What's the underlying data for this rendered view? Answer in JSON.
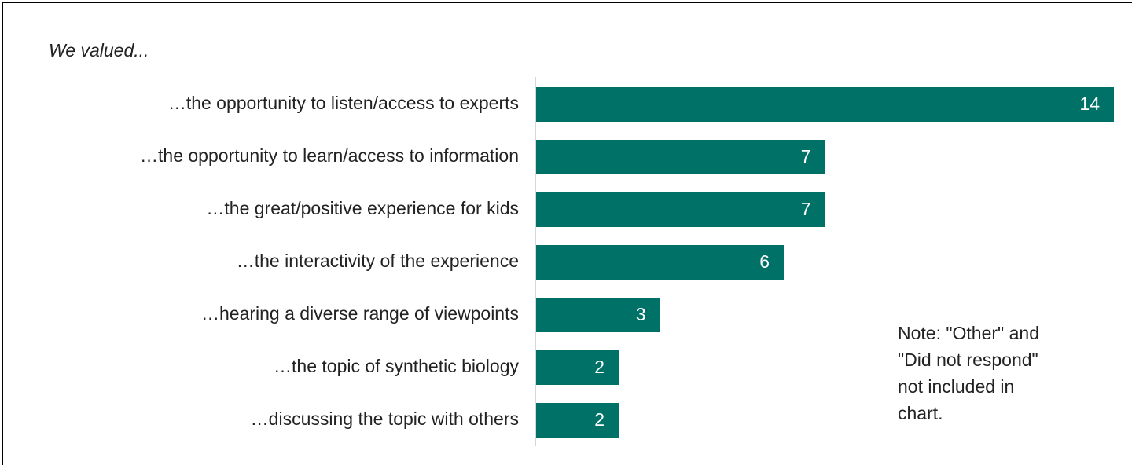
{
  "chart_data": {
    "type": "bar",
    "orientation": "horizontal",
    "title": "We valued...",
    "categories": [
      "…the opportunity to listen/access to experts",
      "…the opportunity to learn/access to information",
      "…the great/positive experience for kids",
      "…the interactivity of the experience",
      "…hearing a diverse range of viewpoints",
      "…the topic of synthetic biology",
      "…discussing the topic with others"
    ],
    "values": [
      14,
      7,
      7,
      6,
      3,
      2,
      2
    ],
    "color": "#007167",
    "xlim": [
      0,
      14
    ],
    "note": [
      "Note: \"Other\" and",
      "\"Did not respond\"",
      "not included in",
      "chart."
    ]
  }
}
